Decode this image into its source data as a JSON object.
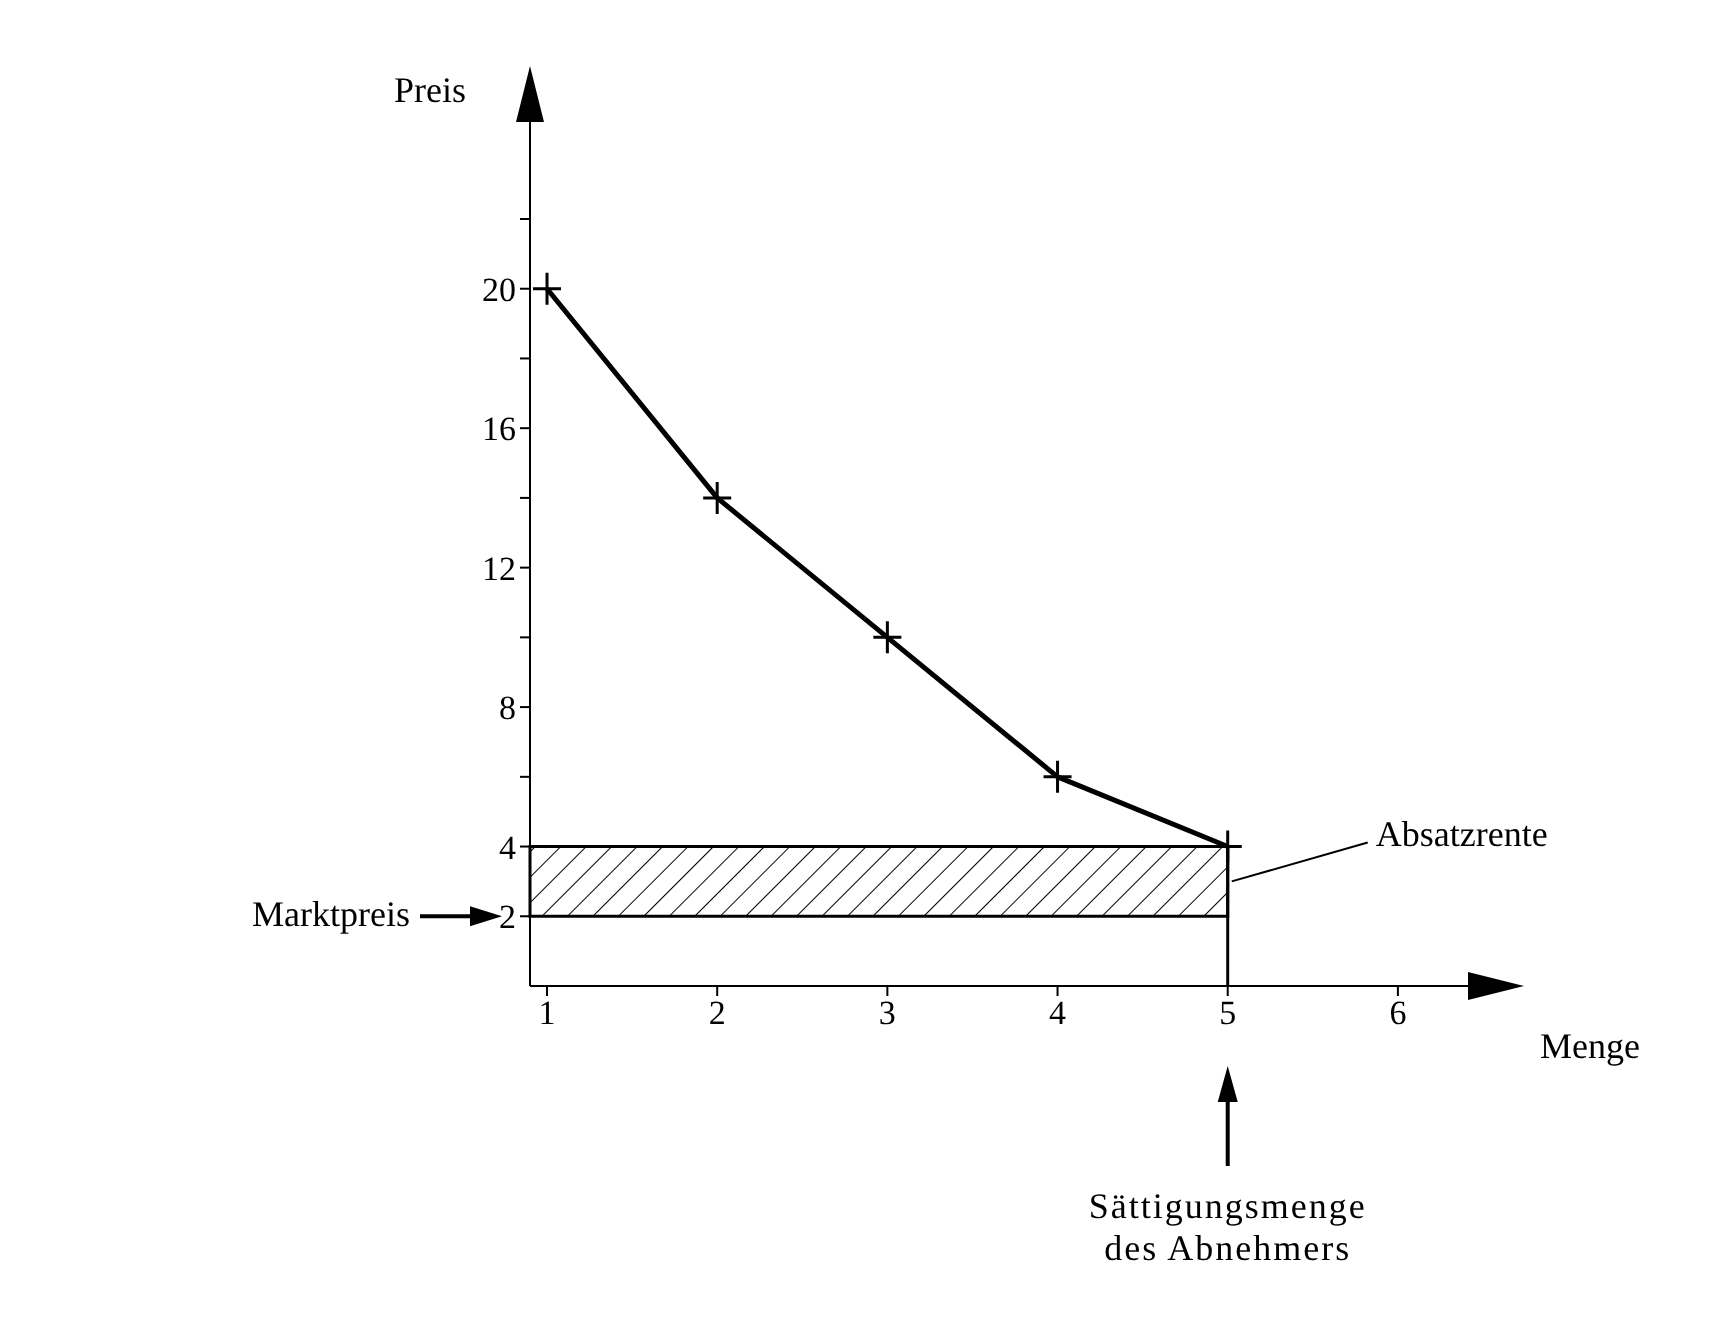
{
  "chart_data": {
    "type": "line",
    "xlabel": "Menge",
    "ylabel": "Preis",
    "x": [
      1,
      2,
      3,
      4,
      5
    ],
    "series": [
      {
        "color": "#000000",
        "values": [
          20,
          14,
          10,
          6,
          4
        ]
      }
    ],
    "xlim": [
      0.9,
      6.6
    ],
    "xticks": [
      1,
      2,
      3,
      4,
      5,
      6
    ],
    "ylim": [
      0,
      25.7
    ],
    "yticks": [
      2,
      4,
      {
        "value": 6,
        "label": null
      },
      8,
      {
        "value": 10,
        "label": null
      },
      12,
      {
        "value": 14,
        "label": null
      },
      16,
      {
        "value": 18,
        "label": null
      },
      20,
      {
        "value": 22,
        "label": null
      }
    ],
    "bands": [
      {
        "axis": "y",
        "from": 2,
        "to": 4,
        "label": "Absatzrente"
      }
    ],
    "ref_lines": [
      {
        "axis": "x",
        "value": 5
      }
    ],
    "annotations": [
      "Marktpreis",
      "Sättigungsmenge des Abnehmers"
    ],
    "marker": "cross",
    "line_style": "solid",
    "grid": false,
    "legend": false
  }
}
